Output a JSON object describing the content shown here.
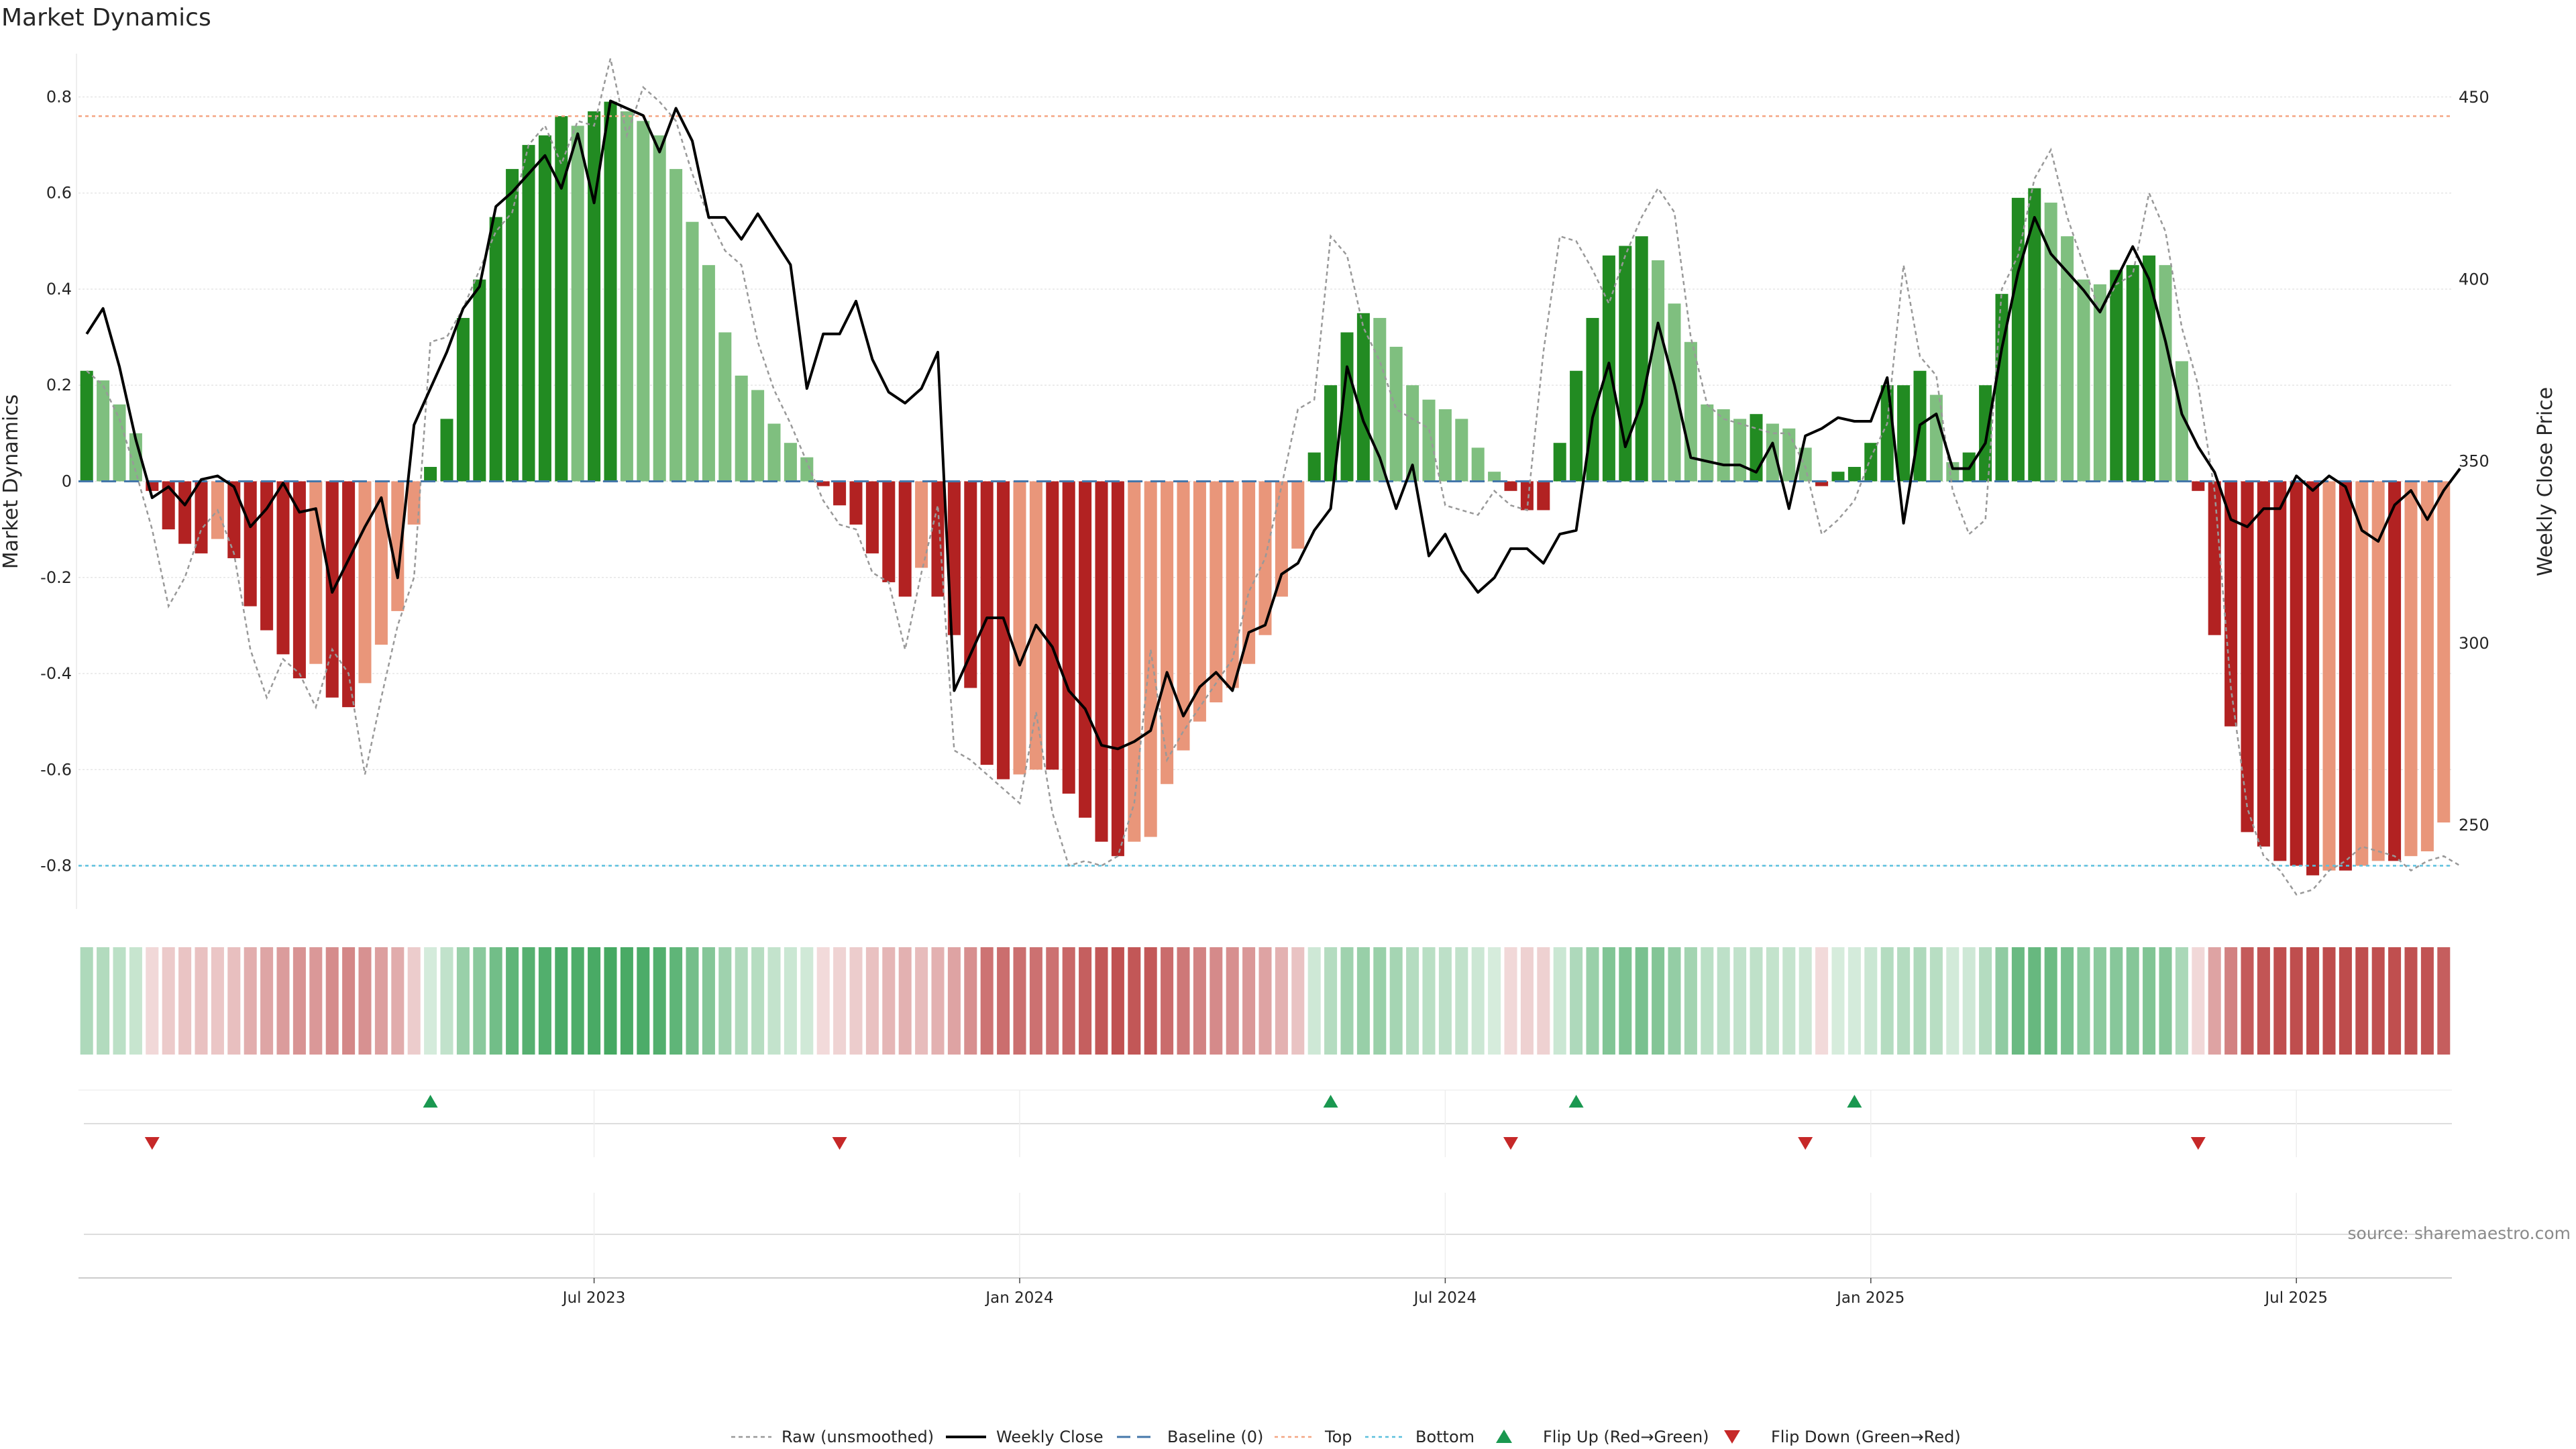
{
  "chart_data": {
    "type": "bar",
    "title": "Market Dynamics",
    "ylabel_left": "Market Dynamics",
    "ylabel_right": "Weekly Close Price",
    "source": "source: sharemaestro.com",
    "ylim_left": [
      -0.89,
      0.89
    ],
    "ylim_right": [
      227,
      462
    ],
    "yticks_left": [
      "0.8",
      "0.6",
      "0.4",
      "0.2",
      "0",
      "-0.2",
      "-0.4",
      "-0.6",
      "-0.8"
    ],
    "yticks_left_values": [
      0.8,
      0.6,
      0.4,
      0.2,
      0,
      -0.2,
      -0.4,
      -0.6,
      -0.8
    ],
    "yticks_right": [
      "450",
      "400",
      "350",
      "300",
      "250"
    ],
    "yticks_right_values": [
      450,
      400,
      350,
      300,
      250
    ],
    "x_ticks": [
      {
        "label": "Jul 2023",
        "week": 31
      },
      {
        "label": "Jan 2024",
        "week": 57
      },
      {
        "label": "Jul 2024",
        "week": 83
      },
      {
        "label": "Jan 2025",
        "week": 109
      },
      {
        "label": "Jul 2025",
        "week": 135
      }
    ],
    "reference_lines": {
      "top": 0.76,
      "bottom": -0.8,
      "baseline": 0
    },
    "bar_colors": {
      "strong_up": "#228b22",
      "weak_up": "#7fbf7f",
      "strong_down": "#b22222",
      "weak_down": "#e9967a"
    },
    "colors": {
      "raw": "#999999",
      "weekly_close": "#000000",
      "baseline": "#4477aa",
      "top": "#f4a582",
      "bottom": "#5bc0de",
      "flip_up": "#1a9850",
      "flip_down": "#c62828"
    },
    "dynamics": [
      0.23,
      0.21,
      0.16,
      0.1,
      -0.02,
      -0.1,
      -0.13,
      -0.15,
      -0.12,
      -0.16,
      -0.26,
      -0.31,
      -0.36,
      -0.41,
      -0.38,
      -0.45,
      -0.47,
      -0.42,
      -0.34,
      -0.27,
      -0.09,
      0.03,
      0.13,
      0.34,
      0.42,
      0.55,
      0.65,
      0.7,
      0.72,
      0.76,
      0.74,
      0.77,
      0.79,
      0.77,
      0.75,
      0.72,
      0.65,
      0.54,
      0.45,
      0.31,
      0.22,
      0.19,
      0.12,
      0.08,
      0.05,
      -0.01,
      -0.05,
      -0.09,
      -0.15,
      -0.21,
      -0.24,
      -0.18,
      -0.24,
      -0.32,
      -0.43,
      -0.59,
      -0.62,
      -0.61,
      -0.6,
      -0.6,
      -0.65,
      -0.7,
      -0.75,
      -0.78,
      -0.75,
      -0.74,
      -0.63,
      -0.56,
      -0.5,
      -0.46,
      -0.43,
      -0.38,
      -0.32,
      -0.24,
      -0.14,
      0.06,
      0.2,
      0.31,
      0.35,
      0.34,
      0.28,
      0.2,
      0.17,
      0.15,
      0.13,
      0.07,
      0.02,
      -0.02,
      -0.06,
      -0.06,
      0.08,
      0.23,
      0.34,
      0.47,
      0.49,
      0.51,
      0.46,
      0.37,
      0.29,
      0.16,
      0.15,
      0.13,
      0.14,
      0.12,
      0.11,
      0.07,
      -0.01,
      0.02,
      0.03,
      0.08,
      0.2,
      0.2,
      0.23,
      0.18,
      0.04,
      0.06,
      0.2,
      0.39,
      0.59,
      0.61,
      0.58,
      0.51,
      0.42,
      0.41,
      0.44,
      0.45,
      0.47,
      0.45,
      0.25,
      -0.02,
      -0.32,
      -0.51,
      -0.73,
      -0.76,
      -0.79,
      -0.8,
      -0.82,
      -0.81,
      -0.81,
      -0.8,
      -0.79,
      -0.79,
      -0.78,
      -0.77,
      -0.71
    ],
    "raw": [
      0.23,
      0.2,
      0.13,
      0.02,
      -0.1,
      -0.26,
      -0.2,
      -0.1,
      -0.06,
      -0.15,
      -0.35,
      -0.45,
      -0.37,
      -0.4,
      -0.47,
      -0.35,
      -0.4,
      -0.61,
      -0.45,
      -0.3,
      -0.2,
      0.29,
      0.3,
      0.36,
      0.44,
      0.52,
      0.56,
      0.7,
      0.74,
      0.66,
      0.75,
      0.74,
      0.88,
      0.72,
      0.82,
      0.79,
      0.75,
      0.64,
      0.55,
      0.48,
      0.45,
      0.29,
      0.19,
      0.12,
      0.04,
      -0.04,
      -0.09,
      -0.1,
      -0.19,
      -0.21,
      -0.35,
      -0.19,
      -0.05,
      -0.56,
      -0.58,
      -0.61,
      -0.64,
      -0.67,
      -0.48,
      -0.69,
      -0.8,
      -0.79,
      -0.8,
      -0.78,
      -0.67,
      -0.35,
      -0.58,
      -0.52,
      -0.47,
      -0.42,
      -0.37,
      -0.23,
      -0.16,
      -0.01,
      0.15,
      0.17,
      0.51,
      0.47,
      0.32,
      0.25,
      0.15,
      0.13,
      0.11,
      -0.05,
      -0.06,
      -0.07,
      -0.02,
      -0.05,
      -0.06,
      0.27,
      0.51,
      0.5,
      0.44,
      0.37,
      0.47,
      0.55,
      0.61,
      0.56,
      0.3,
      0.16,
      0.13,
      0.12,
      0.11,
      0.1,
      0.1,
      0.03,
      -0.11,
      -0.08,
      -0.04,
      0.05,
      0.12,
      0.45,
      0.26,
      0.22,
      -0.02,
      -0.11,
      -0.08,
      0.4,
      0.47,
      0.63,
      0.69,
      0.55,
      0.45,
      0.35,
      0.41,
      0.43,
      0.6,
      0.52,
      0.32,
      0.2,
      -0.02,
      -0.43,
      -0.68,
      -0.78,
      -0.81,
      -0.86,
      -0.85,
      -0.81,
      -0.79,
      -0.76,
      -0.77,
      -0.78,
      -0.81,
      -0.79,
      -0.78,
      -0.8
    ],
    "weekly_close": [
      385,
      392,
      376,
      356,
      340,
      343,
      338,
      345,
      346,
      343,
      332,
      337,
      344,
      336,
      337,
      314,
      323,
      332,
      340,
      318,
      360,
      370,
      380,
      392,
      398,
      420,
      424,
      429,
      434,
      425,
      440,
      421,
      449,
      447,
      445,
      435,
      447,
      438,
      417,
      417,
      411,
      418,
      411,
      404,
      370,
      385,
      385,
      394,
      378,
      369,
      366,
      370,
      380,
      287,
      297,
      307,
      307,
      294,
      305,
      299,
      287,
      282,
      272,
      271,
      273,
      276,
      292,
      280,
      288,
      292,
      287,
      303,
      305,
      319,
      322,
      331,
      337,
      376,
      361,
      351,
      337,
      349,
      324,
      330,
      320,
      314,
      318,
      326,
      326,
      322,
      330,
      331,
      362,
      377,
      354,
      366,
      388,
      371,
      351,
      350,
      349,
      349,
      347,
      355,
      337,
      357,
      359,
      362,
      361,
      361,
      373,
      333,
      360,
      363,
      348,
      348,
      355,
      381,
      402,
      417,
      407,
      402,
      397,
      391,
      400,
      409,
      400,
      383,
      363,
      354,
      347,
      334,
      332,
      337,
      337,
      346,
      342,
      346,
      343,
      331,
      328,
      338,
      342,
      334,
      342,
      348
    ]
  },
  "legend": {
    "raw": "Raw (unsmoothed)",
    "weekly_close": "Weekly Close",
    "baseline": "Baseline (0)",
    "top": "Top",
    "bottom": "Bottom",
    "flip_up": "Flip Up (Red→Green)",
    "flip_down": "Flip Down (Green→Red)"
  },
  "flips": {
    "up_weeks": [
      21,
      76,
      91,
      108
    ],
    "down_weeks": [
      4,
      46,
      87,
      105,
      129
    ]
  }
}
